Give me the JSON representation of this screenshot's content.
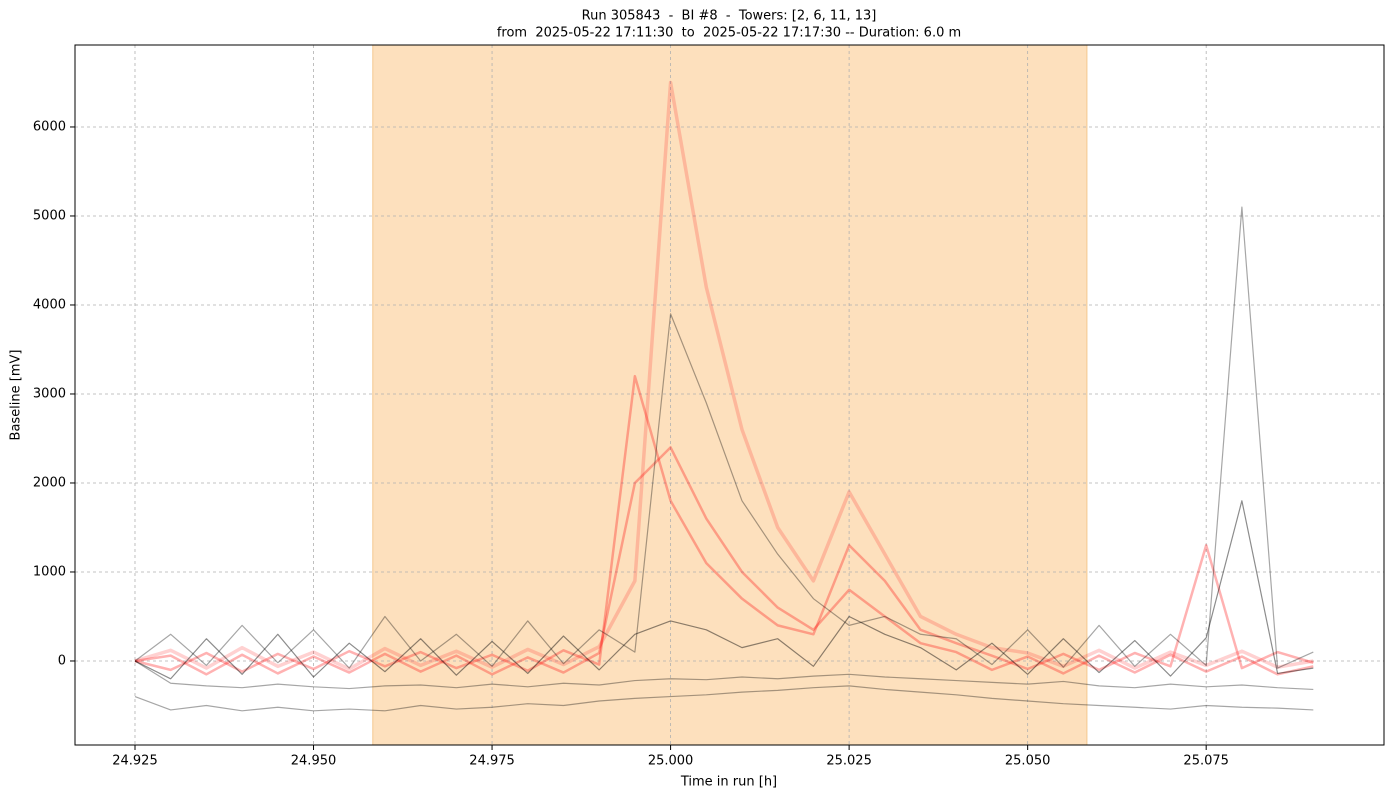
{
  "chart_data": {
    "type": "line",
    "title": "Run 305843  -  BI #8  -  Towers: [2, 6, 11, 13]",
    "subtitle": "from  2025-05-22 17:11:30  to  2025-05-22 17:17:30 -- Duration: 6.0 m",
    "x_label": "Time in run [h]",
    "y_label": "Baseline [mV]",
    "xlim": [
      24.9166,
      25.0999
    ],
    "ylim": [
      -944,
      6921
    ],
    "xticks": [
      24.925,
      {
        "value": 24.95,
        "label": "24.950"
      },
      24.975,
      {
        "value": 25.0,
        "label": "25.000"
      },
      25.025,
      {
        "value": 25.05,
        "label": "25.050"
      },
      25.075
    ],
    "yticks": [
      0,
      1000,
      2000,
      3000,
      4000,
      5000,
      6000
    ],
    "grid": true,
    "span": {
      "x": [
        24.9583,
        25.0583
      ],
      "color": "#fde0bd"
    },
    "x": [
      24.925,
      24.93,
      24.935,
      24.94,
      24.945,
      24.95,
      24.955,
      24.96,
      24.965,
      24.97,
      24.975,
      24.98,
      24.985,
      24.99,
      24.995,
      25.0,
      25.005,
      25.01,
      25.015,
      25.02,
      25.025,
      25.03,
      25.035,
      25.04,
      25.045,
      25.05,
      25.055,
      25.06,
      25.065,
      25.07,
      25.075,
      25.08,
      25.085,
      25.09
    ],
    "series": [
      {
        "color": "#ff0000",
        "opacity": 0.18,
        "values": [
          0,
          120,
          -80,
          150,
          -60,
          100,
          -90,
          140,
          -50,
          110,
          -70,
          130,
          -40,
          160,
          900,
          6500,
          4200,
          2600,
          1500,
          900,
          1900,
          1200,
          500,
          300,
          150,
          90,
          -60,
          120,
          -80,
          100,
          -50,
          110,
          -70,
          0
        ]
      },
      {
        "color": "#ff0000",
        "opacity": 0.3,
        "values": [
          0,
          -100,
          90,
          -120,
          80,
          -90,
          110,
          -60,
          100,
          -80,
          70,
          -110,
          120,
          -40,
          3200,
          1800,
          1100,
          700,
          400,
          300,
          1300,
          900,
          350,
          200,
          60,
          -90,
          80,
          -100,
          90,
          -60,
          1300,
          -80,
          100,
          -20
        ]
      },
      {
        "color": "#ff0000",
        "opacity": 0.3,
        "values": [
          0,
          60,
          -150,
          70,
          -140,
          50,
          -130,
          80,
          -120,
          60,
          -150,
          40,
          -130,
          90,
          2000,
          2400,
          1600,
          1000,
          600,
          350,
          800,
          500,
          200,
          100,
          -100,
          50,
          -140,
          60,
          -130,
          70,
          -120,
          50,
          -150,
          -60
        ]
      },
      {
        "color": "#000000",
        "opacity": 0.35,
        "values": [
          0,
          300,
          -50,
          400,
          -20,
          350,
          -80,
          500,
          0,
          300,
          -60,
          450,
          -30,
          350,
          100,
          3900,
          2900,
          1800,
          1200,
          700,
          400,
          500,
          300,
          250,
          -40,
          350,
          -70,
          400,
          -60,
          300,
          -50,
          5100,
          -80,
          100
        ]
      },
      {
        "color": "#000000",
        "opacity": 0.45,
        "values": [
          0,
          -200,
          250,
          -150,
          300,
          -180,
          200,
          -120,
          250,
          -160,
          220,
          -140,
          280,
          -100,
          300,
          450,
          350,
          150,
          250,
          -60,
          500,
          300,
          150,
          -100,
          200,
          -150,
          250,
          -130,
          230,
          -170,
          260,
          1800,
          -140,
          -80
        ]
      },
      {
        "color": "#000000",
        "opacity": 0.35,
        "values": [
          -400,
          -550,
          -500,
          -560,
          -520,
          -560,
          -540,
          -560,
          -500,
          -540,
          -520,
          -480,
          -500,
          -450,
          -420,
          -400,
          -380,
          -350,
          -330,
          -300,
          -280,
          -320,
          -350,
          -380,
          -420,
          -450,
          -480,
          -500,
          -520,
          -540,
          -500,
          -520,
          -530,
          -550
        ]
      },
      {
        "color": "#000000",
        "opacity": 0.35,
        "values": [
          0,
          -250,
          -280,
          -300,
          -260,
          -290,
          -310,
          -280,
          -270,
          -300,
          -260,
          -290,
          -250,
          -270,
          -220,
          -200,
          -210,
          -180,
          -200,
          -170,
          -150,
          -180,
          -200,
          -220,
          -240,
          -260,
          -230,
          -280,
          -300,
          -260,
          -290,
          -270,
          -300,
          -320
        ]
      }
    ]
  }
}
